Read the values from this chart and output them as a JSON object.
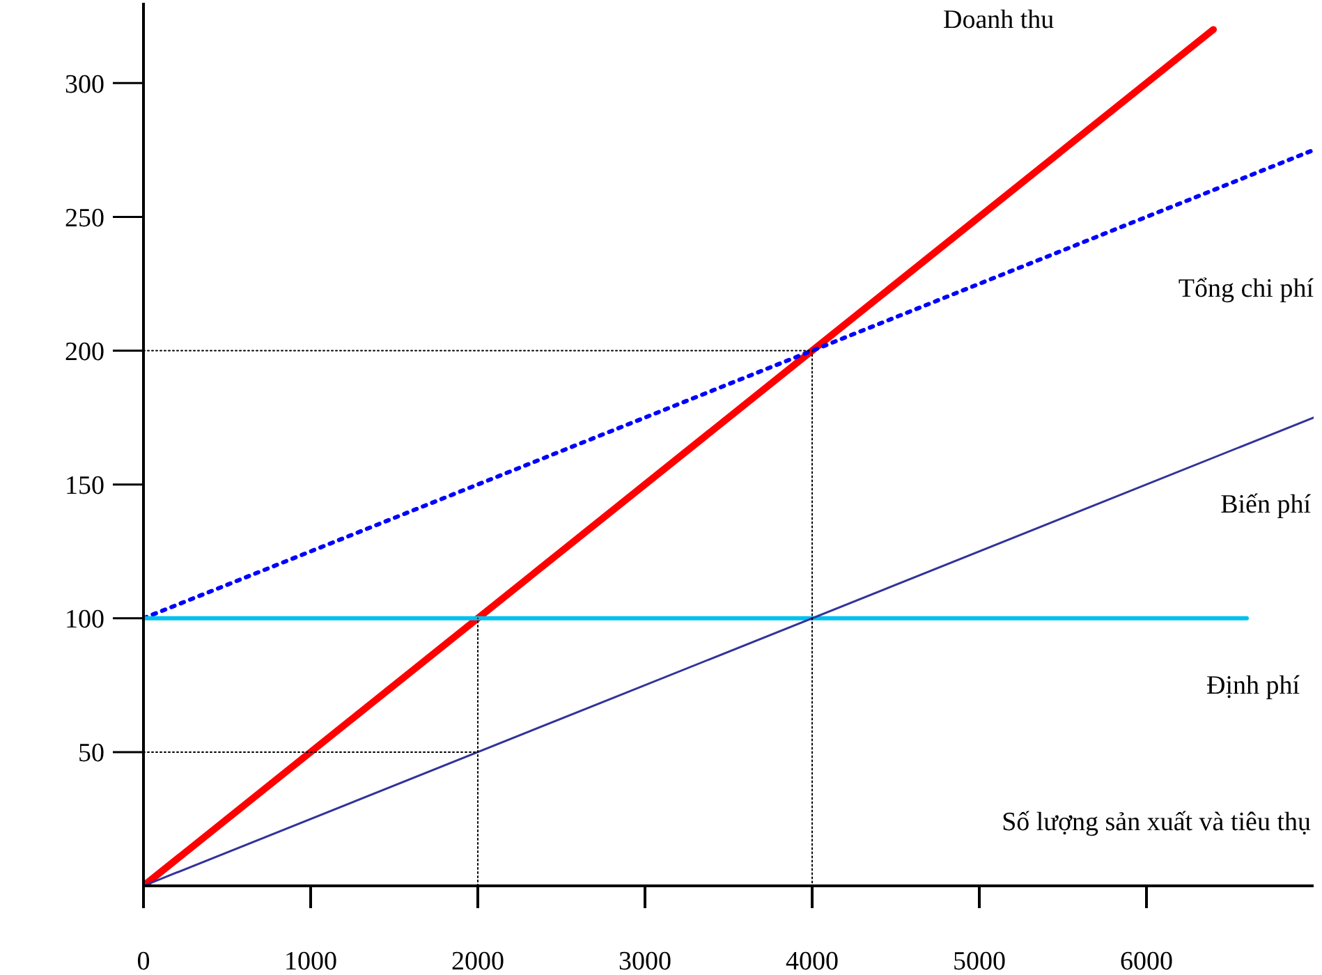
{
  "chart_data": {
    "type": "line",
    "xlabel": "Số lượng sản xuất và tiêu thụ",
    "xlim": [
      0,
      7000
    ],
    "ylim": [
      0,
      330
    ],
    "xticks": [
      0,
      1000,
      2000,
      3000,
      4000,
      5000,
      6000
    ],
    "yticks": [
      50,
      100,
      150,
      200,
      250,
      300
    ],
    "marker": "none",
    "series": [
      {
        "x": [
          0,
          6400
        ],
        "values": [
          0,
          320
        ],
        "color": "#ff0000",
        "line_style": "solid"
      },
      {
        "x": [
          0,
          7000
        ],
        "values": [
          100,
          275
        ],
        "color": "#0000ff",
        "line_style": "dotted"
      },
      {
        "x": [
          0,
          6600
        ],
        "values": [
          100,
          100
        ],
        "color": "#00c0f0",
        "line_style": "solid"
      },
      {
        "x": [
          0,
          7000
        ],
        "values": [
          0,
          175
        ],
        "color": "#333399",
        "line_style": "solid"
      },
      {
        "x": [
          0,
          4000,
          4000
        ],
        "values": [
          200,
          200,
          0
        ],
        "color": "#000000",
        "line_style": "dotted"
      },
      {
        "x": [
          2000,
          2000
        ],
        "values": [
          0,
          100
        ],
        "color": "#000000",
        "line_style": "dotted"
      },
      {
        "x": [
          0,
          2000
        ],
        "values": [
          50,
          50
        ],
        "color": "#000000",
        "line_style": "dotted"
      }
    ],
    "annotations": [
      "Doanh thu",
      "Tổng chi phí",
      "Biến phí",
      "Định phí"
    ]
  }
}
